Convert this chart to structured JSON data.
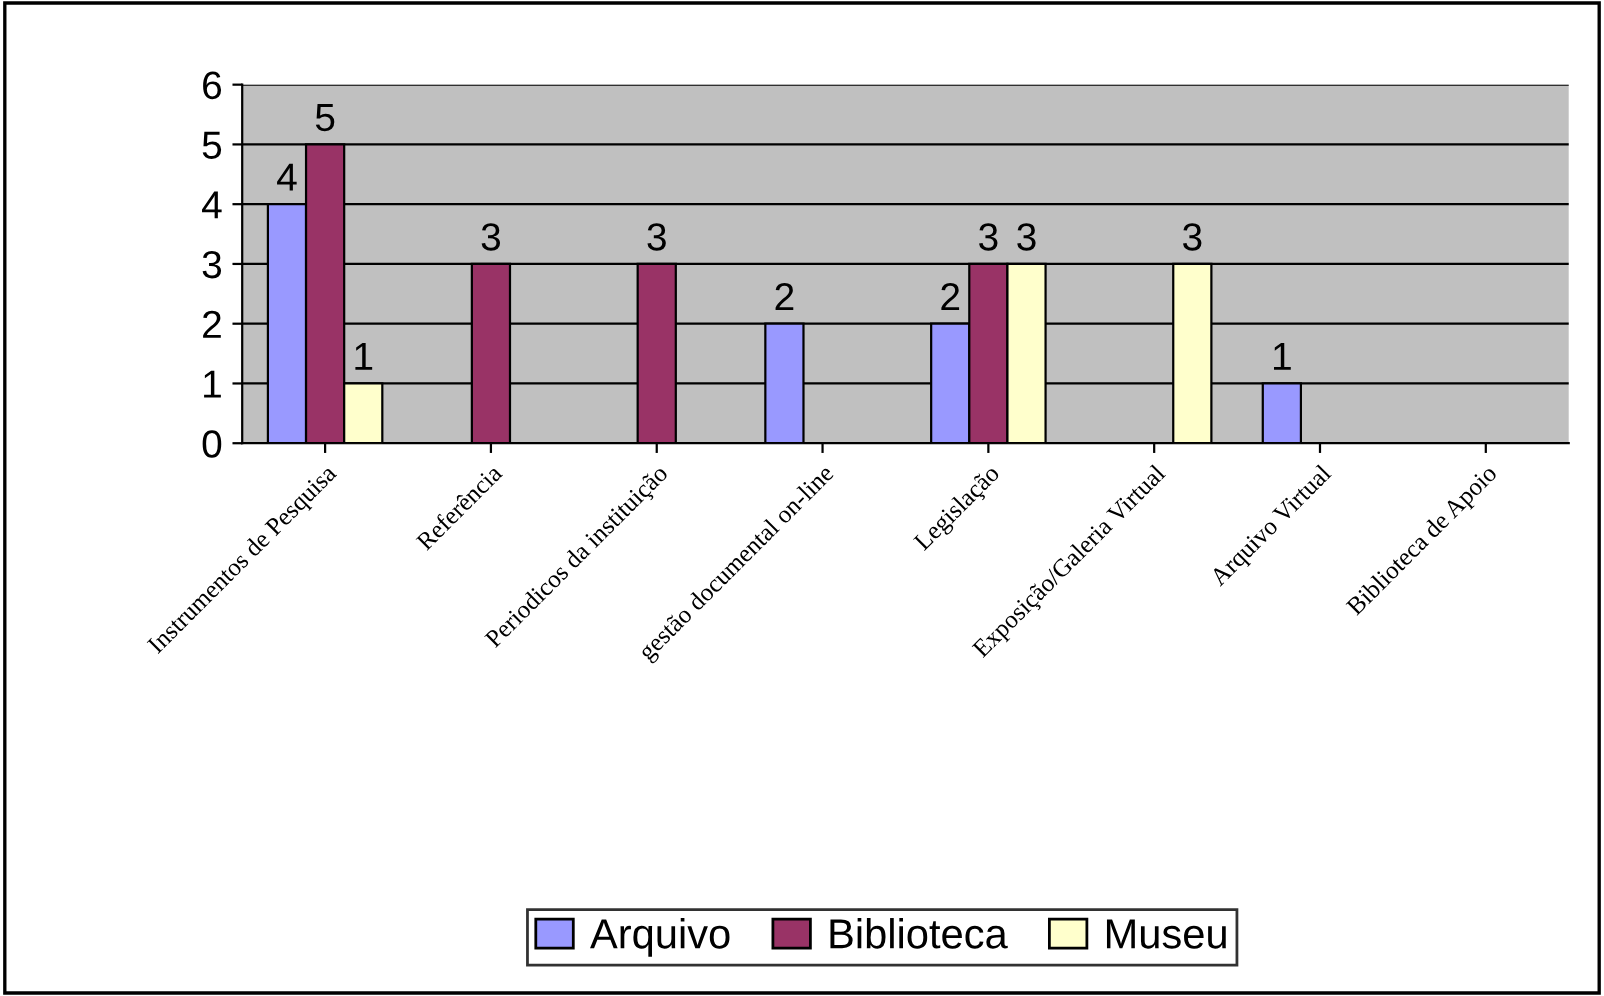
{
  "chart_data": {
    "type": "bar",
    "categories": [
      "Instrumentos de Pesquisa",
      "Referência",
      "Periodicos da instituição",
      "gestão documental on-line",
      "Legislação",
      "Exposição/Galeria Virtual",
      "Arquivo Virtual",
      "Biblioteca de Apoio"
    ],
    "series": [
      {
        "name": "Arquivo",
        "color": "#9999ff",
        "values": [
          4,
          null,
          null,
          2,
          2,
          null,
          1,
          null
        ]
      },
      {
        "name": "Biblioteca",
        "color": "#993366",
        "values": [
          5,
          3,
          3,
          null,
          3,
          null,
          null,
          null
        ]
      },
      {
        "name": "Museu",
        "color": "#ffffcc",
        "values": [
          1,
          null,
          null,
          null,
          3,
          3,
          null,
          null
        ]
      }
    ],
    "ylim": [
      0,
      6
    ],
    "yticks": [
      0,
      1,
      2,
      3,
      4,
      5,
      6
    ],
    "grid": "y",
    "legend": "bottom",
    "data_labels": true
  }
}
